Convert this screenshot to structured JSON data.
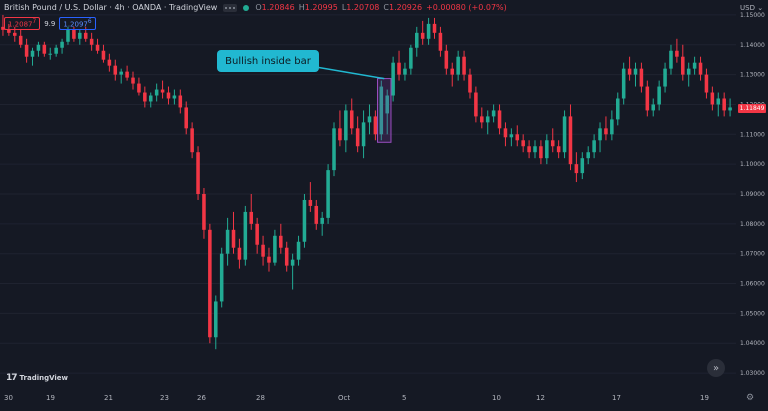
{
  "header": {
    "symbol_title": "British Pound / U.S. Dollar · 4h · OANDA · TradingView",
    "ohlc": {
      "o_label": "O",
      "o_value": "1.20846",
      "h_label": "H",
      "h_value": "1.20995",
      "l_label": "L",
      "l_value": "1.20708",
      "c_label": "C",
      "c_value": "1.20926",
      "change": "+0.00080 (+0.07%)"
    },
    "sell_price": "1.2087",
    "sell_super": "7",
    "spread": "9.9",
    "buy_price": "1.2097",
    "buy_super": "6",
    "currency": "USD"
  },
  "annotation": {
    "callout_text": "Bullish inside bar"
  },
  "price_axis": {
    "ticks": [
      "1.15000",
      "1.14000",
      "1.13000",
      "1.12000",
      "1.11000",
      "1.10000",
      "1.09000",
      "1.08000",
      "1.07000",
      "1.06000",
      "1.05000",
      "1.04000",
      "1.03000"
    ],
    "last_price": "1.11849"
  },
  "time_axis": {
    "labels": [
      "30",
      "19",
      "21",
      "23",
      "26",
      "28",
      "Oct",
      "5",
      "10",
      "12",
      "17",
      "19"
    ]
  },
  "footer": {
    "brand_logo": "17",
    "brand_name": "TradingView"
  },
  "colors": {
    "background": "#151924",
    "up": "#22ab94",
    "down": "#f23645",
    "callout": "#21b8d1",
    "highlight_box": "#7b3ca0"
  },
  "chart_data": {
    "type": "candlestick",
    "ylim": [
      1.025,
      1.155
    ],
    "candles": [
      [
        1.146,
        1.15,
        1.143,
        1.145
      ],
      [
        1.145,
        1.147,
        1.143,
        1.144
      ],
      [
        1.144,
        1.146,
        1.141,
        1.143
      ],
      [
        1.143,
        1.145,
        1.139,
        1.14
      ],
      [
        1.14,
        1.142,
        1.134,
        1.136
      ],
      [
        1.136,
        1.139,
        1.133,
        1.138
      ],
      [
        1.138,
        1.141,
        1.136,
        1.14
      ],
      [
        1.14,
        1.141,
        1.136,
        1.137
      ],
      [
        1.137,
        1.139,
        1.135,
        1.137
      ],
      [
        1.137,
        1.14,
        1.136,
        1.139
      ],
      [
        1.139,
        1.142,
        1.137,
        1.141
      ],
      [
        1.141,
        1.146,
        1.14,
        1.145
      ],
      [
        1.145,
        1.146,
        1.141,
        1.142
      ],
      [
        1.142,
        1.145,
        1.14,
        1.144
      ],
      [
        1.144,
        1.146,
        1.141,
        1.142
      ],
      [
        1.142,
        1.144,
        1.138,
        1.14
      ],
      [
        1.14,
        1.142,
        1.137,
        1.138
      ],
      [
        1.138,
        1.14,
        1.134,
        1.135
      ],
      [
        1.135,
        1.137,
        1.131,
        1.133
      ],
      [
        1.133,
        1.135,
        1.128,
        1.13
      ],
      [
        1.13,
        1.132,
        1.127,
        1.131
      ],
      [
        1.131,
        1.133,
        1.128,
        1.129
      ],
      [
        1.129,
        1.131,
        1.125,
        1.127
      ],
      [
        1.127,
        1.129,
        1.123,
        1.124
      ],
      [
        1.124,
        1.126,
        1.119,
        1.121
      ],
      [
        1.121,
        1.124,
        1.119,
        1.123
      ],
      [
        1.123,
        1.127,
        1.121,
        1.125
      ],
      [
        1.125,
        1.128,
        1.122,
        1.124
      ],
      [
        1.124,
        1.126,
        1.12,
        1.122
      ],
      [
        1.122,
        1.125,
        1.12,
        1.123
      ],
      [
        1.123,
        1.125,
        1.117,
        1.119
      ],
      [
        1.119,
        1.121,
        1.11,
        1.112
      ],
      [
        1.112,
        1.114,
        1.102,
        1.104
      ],
      [
        1.104,
        1.106,
        1.088,
        1.09
      ],
      [
        1.09,
        1.092,
        1.075,
        1.078
      ],
      [
        1.078,
        1.08,
        1.04,
        1.042
      ],
      [
        1.042,
        1.056,
        1.038,
        1.054
      ],
      [
        1.054,
        1.072,
        1.052,
        1.07
      ],
      [
        1.07,
        1.082,
        1.066,
        1.078
      ],
      [
        1.078,
        1.084,
        1.07,
        1.072
      ],
      [
        1.072,
        1.075,
        1.065,
        1.068
      ],
      [
        1.068,
        1.086,
        1.066,
        1.084
      ],
      [
        1.084,
        1.09,
        1.078,
        1.08
      ],
      [
        1.08,
        1.082,
        1.07,
        1.073
      ],
      [
        1.073,
        1.076,
        1.066,
        1.069
      ],
      [
        1.069,
        1.072,
        1.064,
        1.067
      ],
      [
        1.067,
        1.078,
        1.066,
        1.076
      ],
      [
        1.076,
        1.08,
        1.07,
        1.072
      ],
      [
        1.072,
        1.074,
        1.064,
        1.066
      ],
      [
        1.066,
        1.07,
        1.058,
        1.068
      ],
      [
        1.068,
        1.076,
        1.066,
        1.074
      ],
      [
        1.074,
        1.09,
        1.072,
        1.088
      ],
      [
        1.088,
        1.094,
        1.084,
        1.086
      ],
      [
        1.086,
        1.088,
        1.078,
        1.08
      ],
      [
        1.08,
        1.084,
        1.076,
        1.082
      ],
      [
        1.082,
        1.1,
        1.08,
        1.098
      ],
      [
        1.098,
        1.114,
        1.096,
        1.112
      ],
      [
        1.112,
        1.118,
        1.106,
        1.108
      ],
      [
        1.108,
        1.12,
        1.104,
        1.118
      ],
      [
        1.118,
        1.122,
        1.11,
        1.112
      ],
      [
        1.112,
        1.116,
        1.104,
        1.106
      ],
      [
        1.106,
        1.118,
        1.102,
        1.114
      ],
      [
        1.114,
        1.12,
        1.11,
        1.116
      ],
      [
        1.116,
        1.118,
        1.108,
        1.11
      ],
      [
        1.11,
        1.128,
        1.108,
        1.126
      ],
      [
        1.117,
        1.125,
        1.11,
        1.123
      ],
      [
        1.123,
        1.136,
        1.121,
        1.134
      ],
      [
        1.134,
        1.138,
        1.128,
        1.13
      ],
      [
        1.13,
        1.134,
        1.128,
        1.132
      ],
      [
        1.132,
        1.14,
        1.13,
        1.139
      ],
      [
        1.139,
        1.146,
        1.136,
        1.144
      ],
      [
        1.144,
        1.148,
        1.14,
        1.142
      ],
      [
        1.142,
        1.149,
        1.14,
        1.147
      ],
      [
        1.147,
        1.149,
        1.142,
        1.144
      ],
      [
        1.144,
        1.146,
        1.136,
        1.138
      ],
      [
        1.138,
        1.14,
        1.13,
        1.132
      ],
      [
        1.132,
        1.134,
        1.126,
        1.13
      ],
      [
        1.13,
        1.138,
        1.128,
        1.136
      ],
      [
        1.136,
        1.138,
        1.128,
        1.13
      ],
      [
        1.13,
        1.132,
        1.122,
        1.124
      ],
      [
        1.124,
        1.126,
        1.114,
        1.116
      ],
      [
        1.116,
        1.119,
        1.112,
        1.114
      ],
      [
        1.114,
        1.118,
        1.11,
        1.116
      ],
      [
        1.116,
        1.12,
        1.114,
        1.118
      ],
      [
        1.118,
        1.12,
        1.11,
        1.112
      ],
      [
        1.112,
        1.114,
        1.106,
        1.109
      ],
      [
        1.109,
        1.112,
        1.106,
        1.11
      ],
      [
        1.11,
        1.113,
        1.106,
        1.108
      ],
      [
        1.108,
        1.11,
        1.104,
        1.106
      ],
      [
        1.106,
        1.108,
        1.102,
        1.104
      ],
      [
        1.104,
        1.108,
        1.102,
        1.106
      ],
      [
        1.106,
        1.108,
        1.1,
        1.102
      ],
      [
        1.102,
        1.11,
        1.1,
        1.108
      ],
      [
        1.108,
        1.112,
        1.104,
        1.106
      ],
      [
        1.106,
        1.108,
        1.102,
        1.104
      ],
      [
        1.104,
        1.118,
        1.102,
        1.116
      ],
      [
        1.116,
        1.12,
        1.098,
        1.1
      ],
      [
        1.1,
        1.104,
        1.094,
        1.097
      ],
      [
        1.097,
        1.104,
        1.095,
        1.102
      ],
      [
        1.102,
        1.106,
        1.1,
        1.104
      ],
      [
        1.104,
        1.11,
        1.102,
        1.108
      ],
      [
        1.108,
        1.114,
        1.104,
        1.112
      ],
      [
        1.112,
        1.116,
        1.108,
        1.11
      ],
      [
        1.11,
        1.118,
        1.108,
        1.115
      ],
      [
        1.115,
        1.124,
        1.113,
        1.122
      ],
      [
        1.122,
        1.134,
        1.12,
        1.132
      ],
      [
        1.132,
        1.136,
        1.128,
        1.13
      ],
      [
        1.13,
        1.134,
        1.126,
        1.132
      ],
      [
        1.132,
        1.134,
        1.124,
        1.126
      ],
      [
        1.126,
        1.128,
        1.116,
        1.118
      ],
      [
        1.118,
        1.122,
        1.116,
        1.12
      ],
      [
        1.12,
        1.128,
        1.118,
        1.126
      ],
      [
        1.126,
        1.134,
        1.124,
        1.132
      ],
      [
        1.132,
        1.14,
        1.13,
        1.138
      ],
      [
        1.138,
        1.142,
        1.134,
        1.136
      ],
      [
        1.136,
        1.14,
        1.128,
        1.13
      ],
      [
        1.13,
        1.134,
        1.126,
        1.132
      ],
      [
        1.132,
        1.136,
        1.13,
        1.134
      ],
      [
        1.134,
        1.136,
        1.128,
        1.13
      ],
      [
        1.13,
        1.132,
        1.122,
        1.124
      ],
      [
        1.124,
        1.126,
        1.118,
        1.12
      ],
      [
        1.12,
        1.124,
        1.116,
        1.122
      ],
      [
        1.122,
        1.124,
        1.116,
        1.118
      ],
      [
        1.118,
        1.122,
        1.116,
        1.119
      ]
    ],
    "annotation_box_candles": [
      64,
      65
    ],
    "title": "British Pound / U.S. Dollar · 4h · OANDA · TradingView"
  }
}
